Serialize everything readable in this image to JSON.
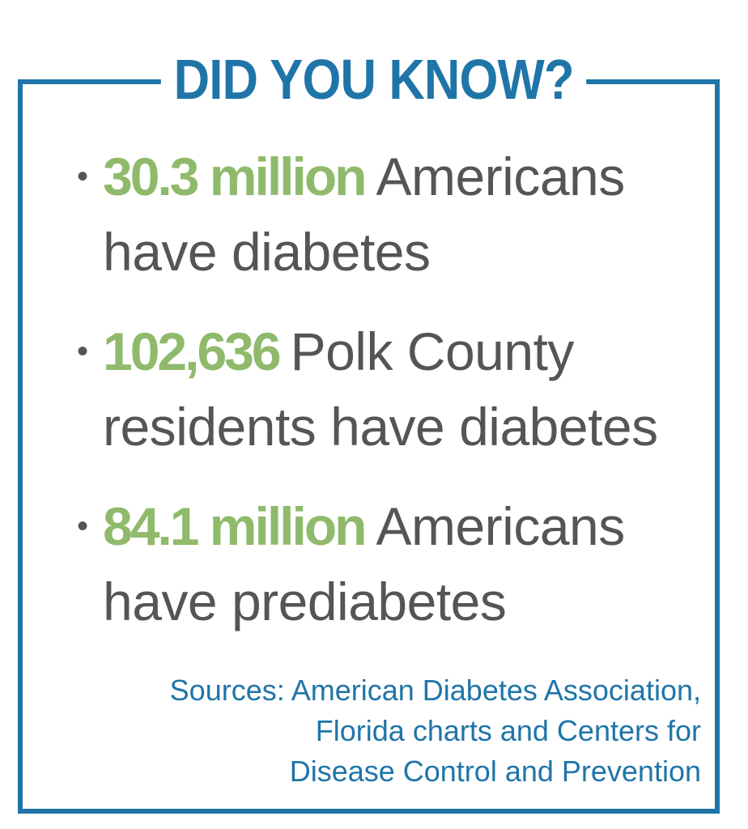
{
  "heading": "DID YOU KNOW?",
  "facts": [
    {
      "bullet": "•",
      "stat": "30.3 million",
      "line1": "Americans",
      "line2": "have diabetes"
    },
    {
      "bullet": "•",
      "stat": "102,636",
      "line1": "Polk County",
      "line2": "residents have diabetes"
    },
    {
      "bullet": "•",
      "stat": "84.1 million",
      "line1": "Americans",
      "line2": "have prediabetes"
    }
  ],
  "sources": {
    "line1": "Sources: American Diabetes Association,",
    "line2": "Florida charts and Centers for",
    "line3": "Disease Control and Prevention"
  },
  "colors": {
    "border": "#1f75a8",
    "heading": "#1f75a8",
    "stat": "#8fba6b",
    "body_text": "#555555",
    "sources": "#1f75a8"
  }
}
